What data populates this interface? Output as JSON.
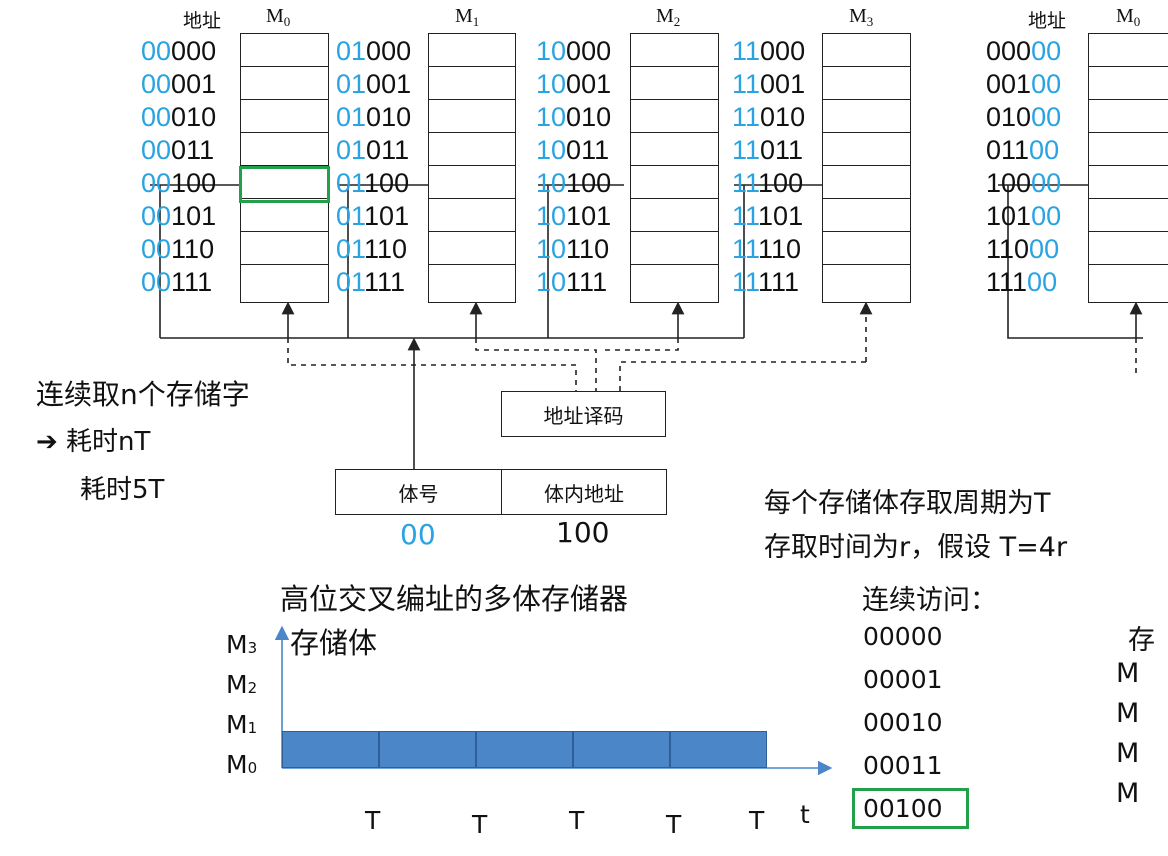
{
  "left_diagram": {
    "addr_header": "地址",
    "banks": [
      {
        "name": "M",
        "sub": "0",
        "rows": [
          {
            "hi": "00",
            "lo": "000"
          },
          {
            "hi": "00",
            "lo": "001"
          },
          {
            "hi": "00",
            "lo": "010"
          },
          {
            "hi": "00",
            "lo": "011"
          },
          {
            "hi": "00",
            "lo": "100"
          },
          {
            "hi": "00",
            "lo": "101"
          },
          {
            "hi": "00",
            "lo": "110"
          },
          {
            "hi": "00",
            "lo": "111"
          }
        ]
      },
      {
        "name": "M",
        "sub": "1",
        "rows": [
          {
            "hi": "01",
            "lo": "000"
          },
          {
            "hi": "01",
            "lo": "001"
          },
          {
            "hi": "01",
            "lo": "010"
          },
          {
            "hi": "01",
            "lo": "011"
          },
          {
            "hi": "01",
            "lo": "100"
          },
          {
            "hi": "01",
            "lo": "101"
          },
          {
            "hi": "01",
            "lo": "110"
          },
          {
            "hi": "01",
            "lo": "111"
          }
        ]
      },
      {
        "name": "M",
        "sub": "2",
        "rows": [
          {
            "hi": "10",
            "lo": "000"
          },
          {
            "hi": "10",
            "lo": "001"
          },
          {
            "hi": "10",
            "lo": "010"
          },
          {
            "hi": "10",
            "lo": "011"
          },
          {
            "hi": "10",
            "lo": "100"
          },
          {
            "hi": "10",
            "lo": "101"
          },
          {
            "hi": "10",
            "lo": "110"
          },
          {
            "hi": "10",
            "lo": "111"
          }
        ]
      },
      {
        "name": "M",
        "sub": "3",
        "rows": [
          {
            "hi": "11",
            "lo": "000"
          },
          {
            "hi": "11",
            "lo": "001"
          },
          {
            "hi": "11",
            "lo": "010"
          },
          {
            "hi": "11",
            "lo": "011"
          },
          {
            "hi": "11",
            "lo": "100"
          },
          {
            "hi": "11",
            "lo": "101"
          },
          {
            "hi": "11",
            "lo": "110"
          },
          {
            "hi": "11",
            "lo": "111"
          }
        ]
      }
    ],
    "decoder_label": "地址译码",
    "bank_no_label": "体号",
    "bank_inner_label": "体内地址",
    "bank_no_value": "00",
    "bank_inner_value": "100"
  },
  "right_diagram": {
    "addr_header": "地址",
    "bank_name": "M",
    "bank_sub": "0",
    "rows": [
      {
        "lo": "000",
        "hi": "00"
      },
      {
        "lo": "001",
        "hi": "00"
      },
      {
        "lo": "010",
        "hi": "00"
      },
      {
        "lo": "011",
        "hi": "00"
      },
      {
        "lo": "100",
        "hi": "00"
      },
      {
        "lo": "101",
        "hi": "00"
      },
      {
        "lo": "110",
        "hi": "00"
      },
      {
        "lo": "111",
        "hi": "00"
      }
    ]
  },
  "notes": {
    "line1": "连续取n个存储字",
    "line2": "➔ 耗时nT",
    "line3": "耗时5T",
    "cycle_line1": "每个存储体存取周期为T",
    "cycle_line2": "存取时间为r，假设 T=4r"
  },
  "caption": "高位交叉编址的多体存储器",
  "sequence": {
    "title": "连续访问：",
    "items": [
      "00000",
      "00001",
      "00010",
      "00011",
      "00100"
    ]
  },
  "right_partial": {
    "head": "存",
    "labels": [
      "M",
      "M",
      "M",
      "M"
    ]
  },
  "timing_chart": {
    "ylabel": "存储体",
    "xlabel": "t",
    "y_labels": [
      {
        "name": "M",
        "sub": "3"
      },
      {
        "name": "M",
        "sub": "2"
      },
      {
        "name": "M",
        "sub": "1"
      },
      {
        "name": "M",
        "sub": "0"
      }
    ],
    "t_labels": [
      "T",
      "T",
      "T",
      "T",
      "T"
    ]
  },
  "chart_data": {
    "type": "bar",
    "title": "",
    "xlabel": "t",
    "ylabel": "存储体",
    "categories": [
      "M3",
      "M2",
      "M1",
      "M0"
    ],
    "series": [
      {
        "values": [
          0,
          0,
          0,
          5
        ]
      }
    ],
    "segments": [
      {
        "bank": "M0",
        "start": 0,
        "end": 1
      },
      {
        "bank": "M0",
        "start": 1,
        "end": 2
      },
      {
        "bank": "M0",
        "start": 2,
        "end": 3
      },
      {
        "bank": "M0",
        "start": 3,
        "end": 4
      },
      {
        "bank": "M0",
        "start": 4,
        "end": 5
      }
    ],
    "xlim": [
      0,
      5.6
    ],
    "grid": false,
    "color": "#4a86c8"
  }
}
